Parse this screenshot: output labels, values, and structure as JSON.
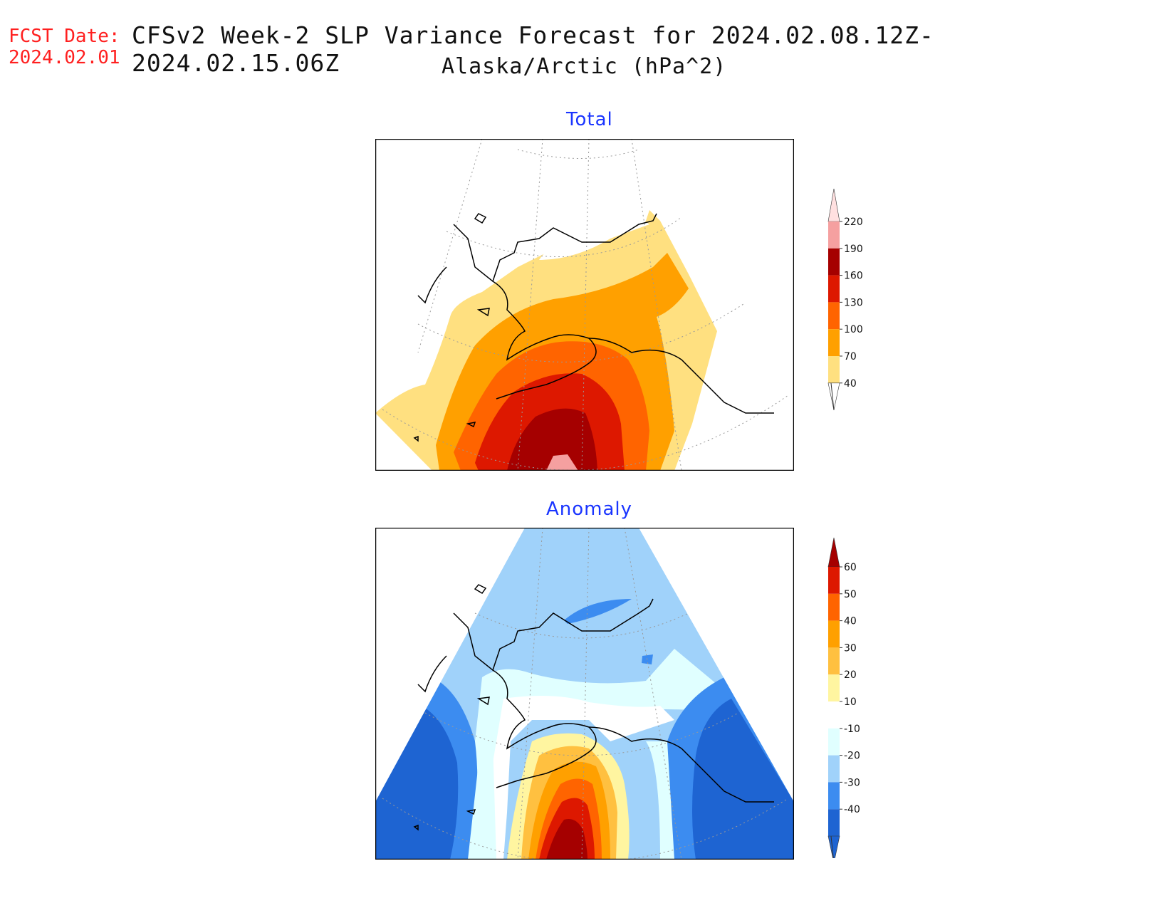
{
  "header": {
    "fcst_label": "FCST Date:",
    "fcst_date": "2024.02.01",
    "title": "CFSv2 Week-2 SLP Variance Forecast for 2024.02.08.12Z-2024.02.15.06Z",
    "subtitle": "Alaska/Arctic (hPa^2)"
  },
  "panels": {
    "total": {
      "title": "Total",
      "colorbar": {
        "labels": [
          "220",
          "190",
          "160",
          "130",
          "100",
          "70",
          "40"
        ],
        "colors": [
          "#ffe0e0",
          "#f5a0a0",
          "#a50000",
          "#dd1800",
          "#ff6400",
          "#ffa000",
          "#ffe080"
        ]
      }
    },
    "anomaly": {
      "title": "Anomaly",
      "colorbar": {
        "labels": [
          "60",
          "50",
          "40",
          "30",
          "20",
          "10",
          "-10",
          "-20",
          "-30",
          "-40"
        ],
        "colors": [
          "#a50000",
          "#dd1800",
          "#ff6400",
          "#ffa000",
          "#ffc040",
          "#fff5a0",
          "#ffffff",
          "#e0ffff",
          "#a0d2fa",
          "#3c8cf0",
          "#1e64d2"
        ]
      }
    }
  }
}
